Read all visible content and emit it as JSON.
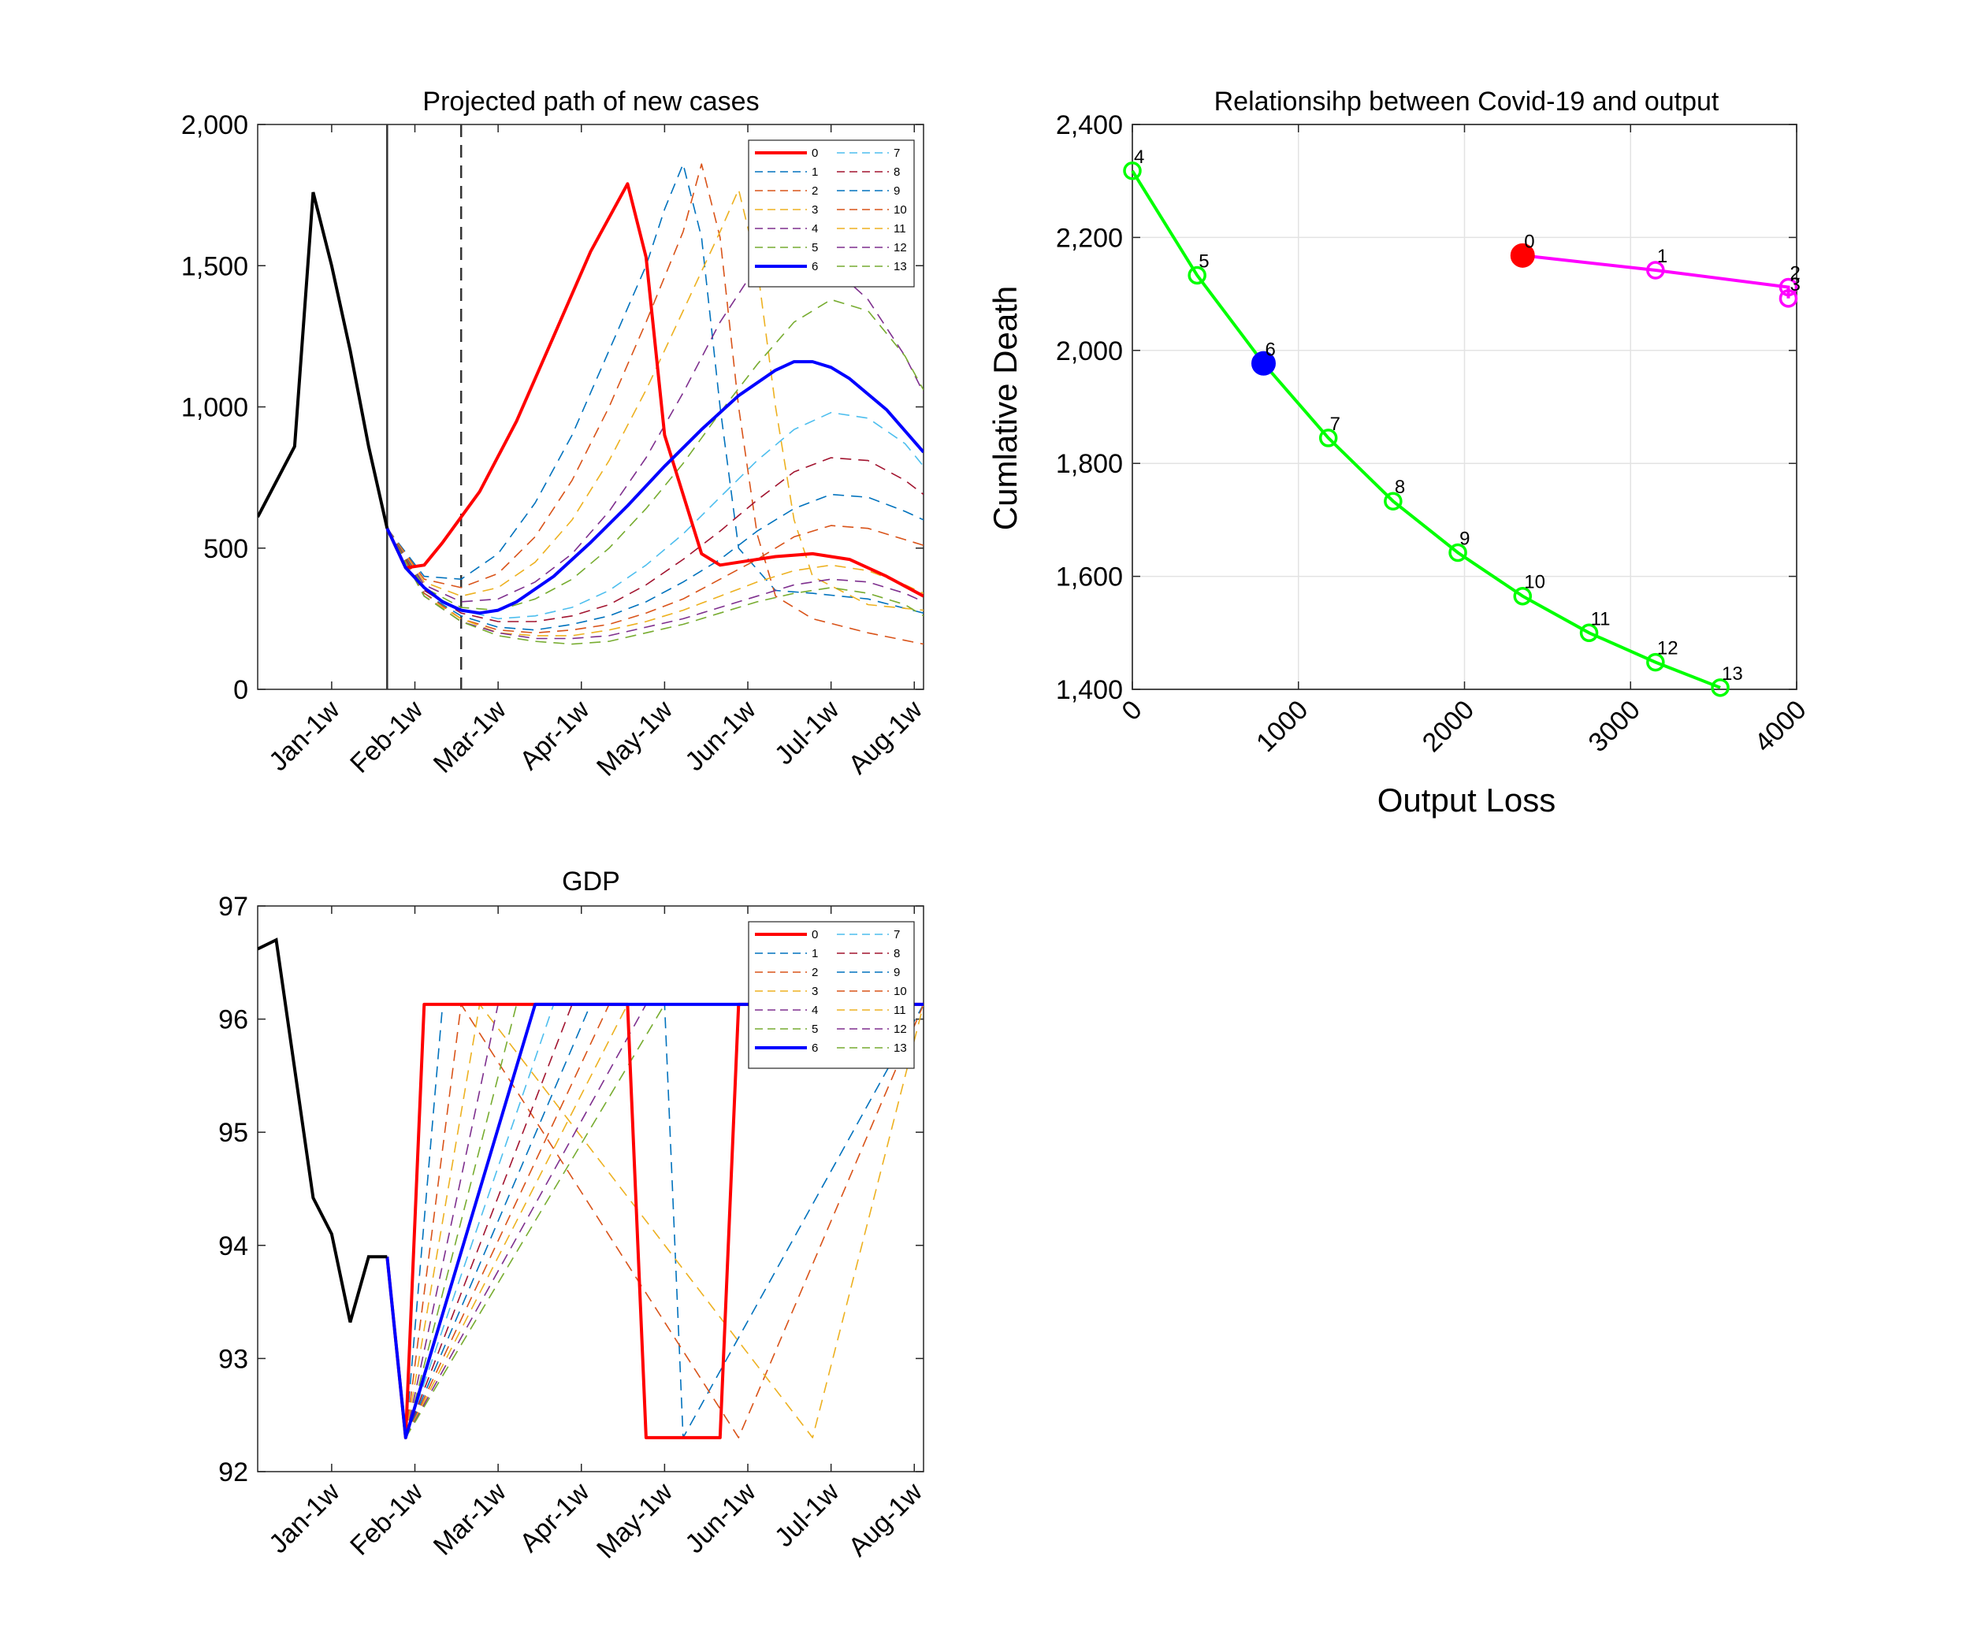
{
  "chart_data": [
    {
      "type": "line",
      "title": "Projected path of new cases",
      "xlabel": "",
      "ylabel": "",
      "x_ticks": [
        "Jan-1w",
        "Feb-1w",
        "Mar-1w",
        "Apr-1w",
        "May-1w",
        "Jun-1w",
        "Jul-1w",
        "Aug-1w"
      ],
      "x_range_weeks": [
        0,
        36
      ],
      "ylim": [
        0,
        2000
      ],
      "y_ticks": [
        "0",
        "500",
        "1,000",
        "1,500",
        "2,000"
      ],
      "grid": false,
      "legend": "top-right",
      "colors": {
        "0": "#ff0000",
        "1": "#0072bd",
        "2": "#d95319",
        "3": "#edb120",
        "4": "#7e2f8e",
        "5": "#77ac30",
        "6": "#0000ff",
        "7": "#4dbeee",
        "8": "#a2142f",
        "9": "#0072bd",
        "10": "#d95319",
        "11": "#edb120",
        "12": "#7e2f8e",
        "13": "#77ac30",
        "history": "#000000"
      },
      "vlines": [
        {
          "x_week": 7,
          "style": "solid"
        },
        {
          "x_week": 11,
          "style": "dashed"
        }
      ],
      "history": {
        "name": "",
        "x_week": [
          0,
          2,
          3,
          4,
          5,
          6,
          7
        ],
        "values": [
          610,
          860,
          1760,
          1500,
          1200,
          860,
          570
        ]
      },
      "series": [
        {
          "name": "0",
          "style": "solid",
          "x_week": [
            7,
            8,
            9,
            10,
            12,
            14,
            16,
            18,
            20,
            21,
            22,
            24,
            25,
            26,
            28,
            30,
            32,
            34,
            36
          ],
          "values": [
            570,
            430,
            440,
            520,
            700,
            950,
            1250,
            1550,
            1790,
            1530,
            900,
            480,
            440,
            450,
            470,
            480,
            460,
            400,
            330
          ]
        },
        {
          "name": "1",
          "style": "dashed",
          "x_week": [
            7,
            9,
            11,
            13,
            15,
            17,
            19,
            21,
            22,
            23,
            24,
            25,
            26,
            28,
            30,
            33,
            36
          ],
          "values": [
            570,
            400,
            390,
            480,
            660,
            900,
            1200,
            1500,
            1700,
            1860,
            1600,
            1000,
            500,
            350,
            340,
            320,
            270
          ]
        },
        {
          "name": "2",
          "style": "dashed",
          "x_week": [
            7,
            9,
            11,
            13,
            15,
            17,
            19,
            21,
            23,
            24,
            25,
            26,
            27,
            28,
            30,
            33,
            36
          ],
          "values": [
            570,
            390,
            360,
            410,
            540,
            740,
            1000,
            1300,
            1620,
            1860,
            1600,
            1000,
            550,
            330,
            250,
            200,
            160
          ]
        },
        {
          "name": "3",
          "style": "dashed",
          "x_week": [
            7,
            9,
            11,
            13,
            15,
            17,
            19,
            21,
            23,
            25,
            26,
            27,
            28,
            29,
            30,
            33,
            36
          ],
          "values": [
            570,
            380,
            330,
            360,
            450,
            600,
            810,
            1060,
            1340,
            1620,
            1770,
            1500,
            1000,
            600,
            400,
            300,
            280
          ]
        },
        {
          "name": "4",
          "style": "dashed",
          "x_week": [
            7,
            9,
            11,
            13,
            15,
            17,
            19,
            21,
            23,
            25,
            27,
            29,
            31,
            33,
            35,
            36
          ],
          "values": [
            570,
            370,
            310,
            320,
            380,
            480,
            630,
            820,
            1050,
            1300,
            1500,
            1560,
            1500,
            1380,
            1180,
            1050
          ]
        },
        {
          "name": "5",
          "style": "dashed",
          "x_week": [
            7,
            9,
            11,
            13,
            15,
            17,
            19,
            21,
            23,
            25,
            27,
            29,
            31,
            33,
            35,
            36
          ],
          "values": [
            570,
            360,
            290,
            280,
            320,
            390,
            500,
            640,
            800,
            980,
            1150,
            1300,
            1380,
            1340,
            1180,
            1060
          ]
        },
        {
          "name": "6",
          "style": "solid",
          "x_week": [
            7,
            8,
            9,
            10,
            11,
            12,
            13,
            14,
            16,
            18,
            20,
            22,
            24,
            26,
            28,
            29,
            30,
            31,
            32,
            34,
            36
          ],
          "values": [
            570,
            430,
            360,
            310,
            280,
            270,
            280,
            310,
            400,
            520,
            650,
            790,
            920,
            1040,
            1130,
            1160,
            1160,
            1140,
            1100,
            990,
            840
          ]
        },
        {
          "name": "7",
          "style": "dashed",
          "x_week": [
            7,
            9,
            11,
            13,
            15,
            17,
            19,
            21,
            23,
            25,
            27,
            29,
            31,
            33,
            35,
            36
          ],
          "values": [
            570,
            350,
            280,
            250,
            260,
            290,
            350,
            440,
            550,
            680,
            810,
            920,
            980,
            960,
            870,
            790
          ]
        },
        {
          "name": "8",
          "style": "dashed",
          "x_week": [
            7,
            9,
            11,
            13,
            15,
            17,
            19,
            21,
            23,
            25,
            27,
            29,
            31,
            33,
            35,
            36
          ],
          "values": [
            570,
            350,
            270,
            240,
            240,
            260,
            300,
            370,
            460,
            560,
            670,
            770,
            820,
            810,
            740,
            690
          ]
        },
        {
          "name": "9",
          "style": "dashed",
          "x_week": [
            7,
            9,
            11,
            13,
            15,
            17,
            19,
            21,
            23,
            25,
            27,
            29,
            31,
            33,
            35,
            36
          ],
          "values": [
            570,
            340,
            260,
            220,
            210,
            230,
            260,
            310,
            380,
            460,
            560,
            640,
            690,
            680,
            630,
            600
          ]
        },
        {
          "name": "10",
          "style": "dashed",
          "x_week": [
            7,
            9,
            11,
            13,
            15,
            17,
            19,
            21,
            23,
            25,
            27,
            29,
            31,
            33,
            35,
            36
          ],
          "values": [
            570,
            340,
            250,
            210,
            200,
            210,
            230,
            270,
            320,
            390,
            460,
            540,
            580,
            570,
            530,
            510
          ]
        },
        {
          "name": "11",
          "style": "dashed",
          "x_week": [
            7,
            9,
            11,
            13,
            15,
            17,
            19,
            21,
            23,
            25,
            27,
            29,
            31,
            33,
            35,
            36
          ],
          "values": [
            570,
            330,
            250,
            200,
            190,
            190,
            210,
            240,
            280,
            330,
            380,
            420,
            440,
            420,
            370,
            340
          ]
        },
        {
          "name": "12",
          "style": "dashed",
          "x_week": [
            7,
            9,
            11,
            13,
            15,
            17,
            19,
            21,
            23,
            25,
            27,
            29,
            31,
            33,
            35,
            36
          ],
          "values": [
            570,
            330,
            240,
            200,
            180,
            180,
            190,
            220,
            250,
            290,
            330,
            370,
            390,
            380,
            340,
            310
          ]
        },
        {
          "name": "13",
          "style": "dashed",
          "x_week": [
            7,
            9,
            11,
            13,
            15,
            17,
            19,
            21,
            23,
            25,
            27,
            29,
            31,
            33,
            35,
            36
          ],
          "values": [
            570,
            330,
            240,
            190,
            170,
            160,
            170,
            200,
            230,
            270,
            310,
            340,
            360,
            340,
            300,
            260
          ]
        }
      ]
    },
    {
      "type": "scatter",
      "title": "Relationsihp between Covid-19 and output",
      "xlabel": "Output Loss",
      "ylabel": "Cumlative Death",
      "xlim": [
        0,
        4000
      ],
      "ylim": [
        1400,
        2400
      ],
      "x_ticks": [
        "0",
        "1000",
        "2000",
        "3000",
        "4000"
      ],
      "y_ticks": [
        "1,400",
        "1,600",
        "1,800",
        "2,000",
        "2,200",
        "2,400"
      ],
      "grid": true,
      "legend": "none",
      "colors": {
        "green_curve": "#00ff00",
        "magenta_curve": "#ff00ff",
        "highlight_0": "#ff0000",
        "highlight_6": "#0000ff"
      },
      "series": [
        {
          "name": "",
          "color": "#ff00ff",
          "points": [
            {
              "label": "0",
              "x": 2350,
              "y": 2168,
              "marker": "filled-red"
            },
            {
              "label": "1",
              "x": 3150,
              "y": 2142,
              "marker": "open"
            },
            {
              "label": "2",
              "x": 3950,
              "y": 2112,
              "marker": "open"
            },
            {
              "label": "3",
              "x": 3950,
              "y": 2092,
              "marker": "open"
            }
          ]
        },
        {
          "name": "",
          "color": "#00ff00",
          "points": [
            {
              "label": "4",
              "x": 0,
              "y": 2318,
              "marker": "open"
            },
            {
              "label": "5",
              "x": 390,
              "y": 2133,
              "marker": "open"
            },
            {
              "label": "6",
              "x": 790,
              "y": 1977,
              "marker": "filled-blue"
            },
            {
              "label": "7",
              "x": 1180,
              "y": 1845,
              "marker": "open"
            },
            {
              "label": "8",
              "x": 1570,
              "y": 1733,
              "marker": "open"
            },
            {
              "label": "9",
              "x": 1960,
              "y": 1642,
              "marker": "open"
            },
            {
              "label": "10",
              "x": 2350,
              "y": 1565,
              "marker": "open"
            },
            {
              "label": "11",
              "x": 2750,
              "y": 1500,
              "marker": "open"
            },
            {
              "label": "12",
              "x": 3150,
              "y": 1448,
              "marker": "open"
            },
            {
              "label": "13",
              "x": 3540,
              "y": 1403,
              "marker": "open"
            }
          ]
        }
      ]
    },
    {
      "type": "line",
      "title": "GDP",
      "xlabel": "",
      "ylabel": "",
      "x_ticks": [
        "Jan-1w",
        "Feb-1w",
        "Mar-1w",
        "Apr-1w",
        "May-1w",
        "Jun-1w",
        "Jul-1w",
        "Aug-1w"
      ],
      "x_range_weeks": [
        0,
        36
      ],
      "ylim": [
        92,
        97
      ],
      "y_ticks": [
        "92",
        "93",
        "94",
        "95",
        "96",
        "97"
      ],
      "grid": false,
      "legend": "top-right",
      "history": {
        "name": "",
        "x_week": [
          0,
          1,
          3,
          4,
          5,
          6,
          7
        ],
        "values": [
          96.62,
          96.7,
          94.42,
          94.1,
          93.32,
          93.9,
          93.9
        ]
      },
      "series": [
        {
          "name": "0",
          "style": "solid",
          "x_week": [
            7,
            8,
            9,
            10,
            20,
            21,
            25,
            26,
            36
          ],
          "values": [
            93.9,
            92.3,
            96.13,
            96.13,
            96.13,
            92.3,
            92.3,
            96.13,
            96.13
          ]
        },
        {
          "name": "1",
          "style": "dashed",
          "x_week": [
            7,
            8,
            10,
            22,
            23,
            36
          ],
          "values": [
            93.9,
            92.3,
            96.13,
            96.13,
            92.3,
            96.13
          ]
        },
        {
          "name": "2",
          "style": "dashed",
          "x_week": [
            7,
            8,
            11,
            26,
            36
          ],
          "values": [
            93.9,
            92.3,
            96.13,
            92.3,
            96.13
          ]
        },
        {
          "name": "3",
          "style": "dashed",
          "x_week": [
            7,
            8,
            12,
            30,
            36
          ],
          "values": [
            93.9,
            92.3,
            96.13,
            92.3,
            96.13
          ]
        },
        {
          "name": "4",
          "style": "dashed",
          "x_week": [
            7,
            8,
            13,
            36
          ],
          "values": [
            93.9,
            92.3,
            96.13,
            96.13
          ]
        },
        {
          "name": "5",
          "style": "dashed",
          "x_week": [
            7,
            8,
            14,
            36
          ],
          "values": [
            93.9,
            92.3,
            96.13,
            96.13
          ]
        },
        {
          "name": "6",
          "style": "solid",
          "x_week": [
            7,
            8,
            15,
            36
          ],
          "values": [
            93.9,
            92.3,
            96.13,
            96.13
          ]
        },
        {
          "name": "7",
          "style": "dashed",
          "x_week": [
            7,
            8,
            16,
            36
          ],
          "values": [
            93.9,
            92.3,
            96.13,
            96.13
          ]
        },
        {
          "name": "8",
          "style": "dashed",
          "x_week": [
            7,
            8,
            17,
            36
          ],
          "values": [
            93.9,
            92.3,
            96.13,
            96.13
          ]
        },
        {
          "name": "9",
          "style": "dashed",
          "x_week": [
            7,
            8,
            18,
            36
          ],
          "values": [
            93.9,
            92.3,
            96.13,
            96.13
          ]
        },
        {
          "name": "10",
          "style": "dashed",
          "x_week": [
            7,
            8,
            19,
            36
          ],
          "values": [
            93.9,
            92.3,
            96.13,
            96.13
          ]
        },
        {
          "name": "11",
          "style": "dashed",
          "x_week": [
            7,
            8,
            20,
            36
          ],
          "values": [
            93.9,
            92.3,
            96.13,
            96.13
          ]
        },
        {
          "name": "12",
          "style": "dashed",
          "x_week": [
            7,
            8,
            21,
            36
          ],
          "values": [
            93.9,
            92.3,
            96.13,
            96.13
          ]
        },
        {
          "name": "13",
          "style": "dashed",
          "x_week": [
            7,
            8,
            22,
            36
          ],
          "values": [
            93.9,
            92.3,
            96.13,
            96.13
          ]
        }
      ]
    }
  ]
}
